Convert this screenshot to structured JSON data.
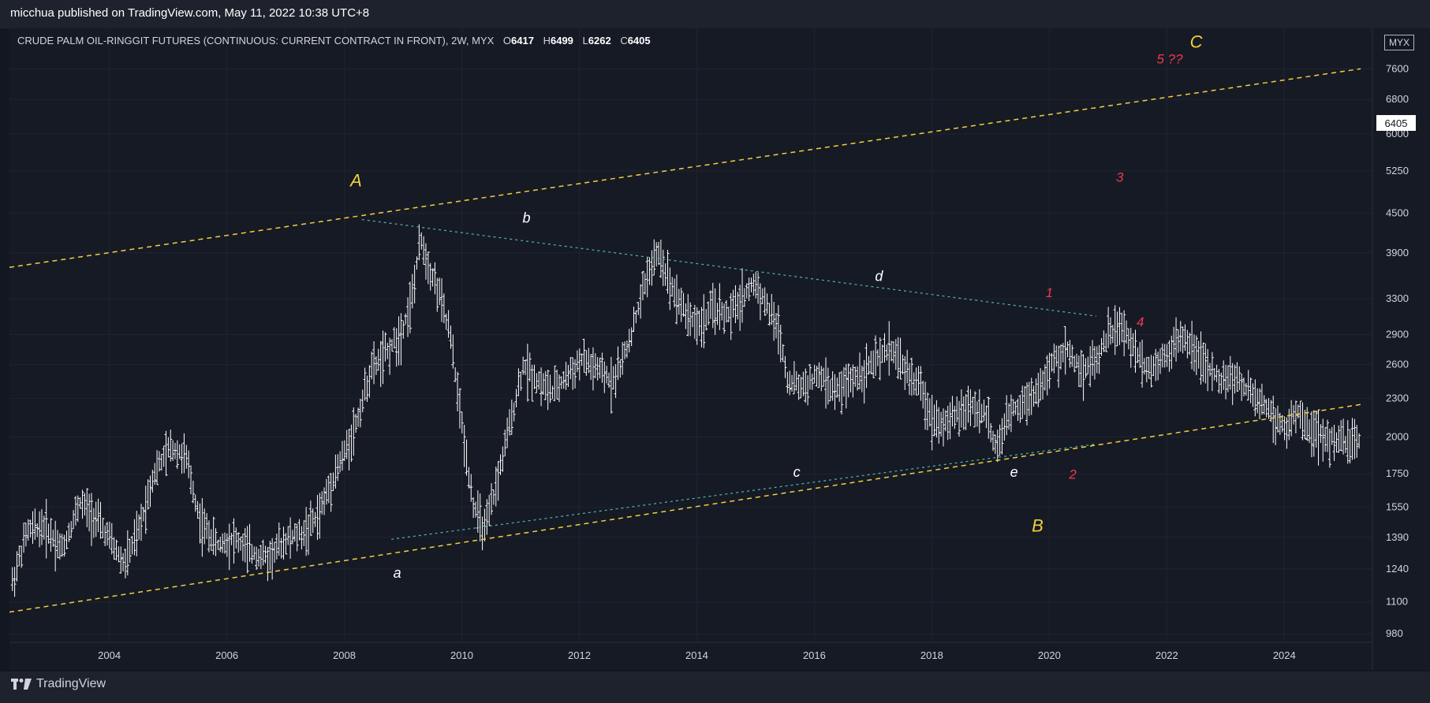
{
  "header": {
    "published_text": "micchua published on TradingView.com, May 11, 2022 10:38 UTC+8"
  },
  "legend": {
    "symbol": "CRUDE PALM OIL-RINGGIT FUTURES (CONTINUOUS: CURRENT CONTRACT IN FRONT), 2W, MYX",
    "open_label": "O",
    "open": "6417",
    "high_label": "H",
    "high": "6499",
    "low_label": "L",
    "low": "6262",
    "close_label": "C",
    "close": "6405"
  },
  "price_axis": {
    "currency": "MYX",
    "last_price": "6405"
  },
  "footer": {
    "brand": "TradingView"
  },
  "colors": {
    "background": "#131722",
    "bars": "#ffffff",
    "channel": "#f2d03c",
    "wave_major": "#f2d03c",
    "wave_minor": "#ffffff",
    "wave_impulse": "#f0384d",
    "trendline": "#4fb7b0"
  },
  "chart_data": {
    "type": "ohlc",
    "title": "CRUDE PALM OIL-RINGGIT FUTURES (CONTINUOUS: CURRENT CONTRACT IN FRONT), 2W, MYX",
    "scale": "log",
    "ylim": [
      950,
      8800
    ],
    "xlim": [
      2002.3,
      2025.5
    ],
    "y_ticks": [
      980,
      1100,
      1240,
      1390,
      1550,
      1750,
      2000,
      2300,
      2600,
      2900,
      3300,
      3900,
      4500,
      5250,
      6000,
      6800,
      7600
    ],
    "x_ticks": [
      "2004",
      "2006",
      "2008",
      "2010",
      "2012",
      "2014",
      "2016",
      "2018",
      "2020",
      "2022",
      "2024"
    ],
    "price_path": [
      [
        2002.35,
        1180
      ],
      [
        2002.6,
        1420
      ],
      [
        2002.9,
        1450
      ],
      [
        2003.2,
        1330
      ],
      [
        2003.5,
        1580
      ],
      [
        2003.75,
        1500
      ],
      [
        2004.0,
        1380
      ],
      [
        2004.25,
        1260
      ],
      [
        2004.5,
        1420
      ],
      [
        2004.75,
        1750
      ],
      [
        2005.05,
        1930
      ],
      [
        2005.3,
        1860
      ],
      [
        2005.55,
        1470
      ],
      [
        2005.85,
        1350
      ],
      [
        2006.1,
        1390
      ],
      [
        2006.4,
        1320
      ],
      [
        2006.7,
        1290
      ],
      [
        2007.0,
        1380
      ],
      [
        2007.3,
        1410
      ],
      [
        2007.55,
        1500
      ],
      [
        2007.8,
        1720
      ],
      [
        2008.0,
        1880
      ],
      [
        2008.2,
        2100
      ],
      [
        2008.45,
        2550
      ],
      [
        2008.7,
        2700
      ],
      [
        2008.95,
        2900
      ],
      [
        2009.15,
        3300
      ],
      [
        2009.3,
        4100
      ],
      [
        2009.45,
        3700
      ],
      [
        2009.6,
        3400
      ],
      [
        2009.8,
        2900
      ],
      [
        2010.0,
        2100
      ],
      [
        2010.2,
        1560
      ],
      [
        2010.4,
        1420
      ],
      [
        2010.6,
        1700
      ],
      [
        2010.85,
        2150
      ],
      [
        2011.05,
        2600
      ],
      [
        2011.3,
        2450
      ],
      [
        2011.55,
        2350
      ],
      [
        2011.8,
        2500
      ],
      [
        2012.05,
        2650
      ],
      [
        2012.3,
        2550
      ],
      [
        2012.55,
        2450
      ],
      [
        2012.75,
        2650
      ],
      [
        2012.95,
        3050
      ],
      [
        2013.15,
        3600
      ],
      [
        2013.35,
        3900
      ],
      [
        2013.55,
        3500
      ],
      [
        2013.8,
        3150
      ],
      [
        2014.05,
        3000
      ],
      [
        2014.3,
        3200
      ],
      [
        2014.55,
        3100
      ],
      [
        2014.8,
        3350
      ],
      [
        2015.0,
        3500
      ],
      [
        2015.2,
        3200
      ],
      [
        2015.4,
        2950
      ],
      [
        2015.55,
        2450
      ],
      [
        2015.8,
        2400
      ],
      [
        2016.1,
        2500
      ],
      [
        2016.35,
        2350
      ],
      [
        2016.6,
        2450
      ],
      [
        2016.85,
        2550
      ],
      [
        2017.1,
        2650
      ],
      [
        2017.3,
        2780
      ],
      [
        2017.55,
        2550
      ],
      [
        2017.8,
        2400
      ],
      [
        2018.0,
        2150
      ],
      [
        2018.25,
        2100
      ],
      [
        2018.5,
        2200
      ],
      [
        2018.7,
        2250
      ],
      [
        2018.95,
        2150
      ],
      [
        2019.1,
        1900
      ],
      [
        2019.35,
        2200
      ],
      [
        2019.6,
        2300
      ],
      [
        2019.85,
        2400
      ],
      [
        2020.05,
        2600
      ],
      [
        2020.3,
        2750
      ],
      [
        2020.55,
        2550
      ],
      [
        2020.8,
        2650
      ],
      [
        2021.0,
        2900
      ],
      [
        2021.2,
        3000
      ],
      [
        2021.45,
        2750
      ],
      [
        2021.7,
        2550
      ],
      [
        2021.95,
        2700
      ],
      [
        2022.2,
        2850
      ],
      [
        2022.45,
        2800
      ],
      [
        2022.7,
        2550
      ],
      [
        2022.95,
        2450
      ],
      [
        2023.15,
        2500
      ],
      [
        2023.4,
        2350
      ],
      [
        2023.65,
        2250
      ],
      [
        2023.85,
        2150
      ],
      [
        2024.05,
        2050
      ],
      [
        2024.25,
        2200
      ],
      [
        2024.45,
        2050
      ],
      [
        2024.65,
        2000
      ],
      [
        2024.85,
        1980
      ],
      [
        2025.05,
        1950
      ],
      [
        2025.3,
        1990
      ]
    ],
    "annotations": [
      {
        "text": "A",
        "kind": "major",
        "x": 2008.2,
        "y": 4960
      },
      {
        "text": "B",
        "kind": "major",
        "x": 2019.8,
        "y": 1420
      },
      {
        "text": "C",
        "kind": "major",
        "x": 2022.5,
        "y": 8200
      },
      {
        "text": "a",
        "kind": "minor",
        "x": 2008.9,
        "y": 1200
      },
      {
        "text": "b",
        "kind": "minor",
        "x": 2011.1,
        "y": 4350
      },
      {
        "text": "c",
        "kind": "minor",
        "x": 2015.7,
        "y": 1730
      },
      {
        "text": "d",
        "kind": "minor",
        "x": 2017.1,
        "y": 3520
      },
      {
        "text": "e",
        "kind": "minor",
        "x": 2019.4,
        "y": 1730
      },
      {
        "text": "1",
        "kind": "impulse",
        "x": 2020.0,
        "y": 3320
      },
      {
        "text": "2",
        "kind": "impulse",
        "x": 2020.4,
        "y": 1720
      },
      {
        "text": "3",
        "kind": "impulse",
        "x": 2021.2,
        "y": 5050
      },
      {
        "text": "4",
        "kind": "impulse",
        "x": 2021.55,
        "y": 2990
      },
      {
        "text": "5 ??",
        "kind": "impulse",
        "x": 2022.05,
        "y": 7750
      }
    ],
    "lines": [
      {
        "name": "upper-channel",
        "style": "dashed",
        "points": [
          [
            2002.3,
            3700
          ],
          [
            2025.3,
            7600
          ]
        ]
      },
      {
        "name": "lower-channel",
        "style": "dashed",
        "points": [
          [
            2002.3,
            1060
          ],
          [
            2025.3,
            2250
          ]
        ]
      },
      {
        "name": "b-d-trendline",
        "style": "dotted",
        "points": [
          [
            2008.3,
            4400
          ],
          [
            2020.8,
            3100
          ]
        ]
      },
      {
        "name": "a-e-trendline",
        "style": "dotted",
        "points": [
          [
            2008.8,
            1380
          ],
          [
            2020.8,
            1950
          ]
        ]
      }
    ]
  }
}
